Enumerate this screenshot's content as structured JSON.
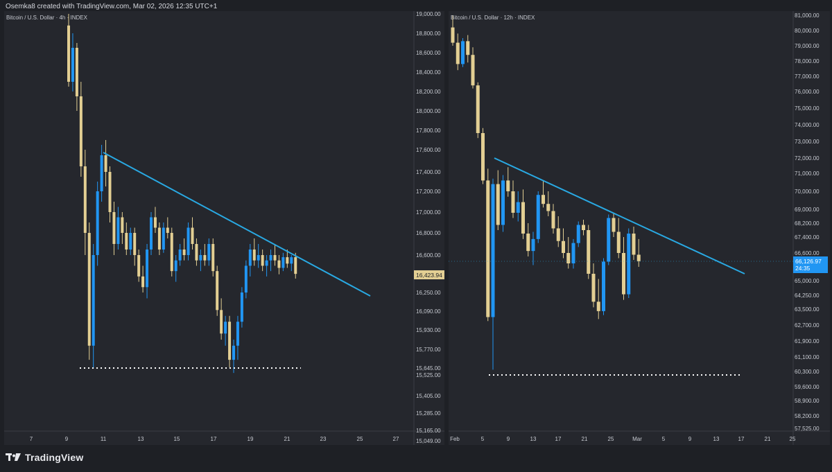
{
  "header": {
    "text": "Osemka8 created with TradingView.com, Mar 02, 2026 12:35 UTC+1"
  },
  "footer": {
    "brand": "TradingView"
  },
  "colors": {
    "up": "#2196f3",
    "down": "#e3cf93",
    "trendline": "#29a9e3",
    "support": "#ffffff",
    "pane_bg": "#25272d",
    "axis_text": "#c7cad1"
  },
  "chart_data": [
    {
      "type": "candlestick",
      "title": "Bitcoin / U.S. Dollar · 4h · INDEX",
      "y_ticks": [
        "19,000.00",
        "18,800.00",
        "18,600.00",
        "18,400.00",
        "18,200.00",
        "18,000.00",
        "17,800.00",
        "17,600.00",
        "17,400.00",
        "17,200.00",
        "17,000.00",
        "16,800.00",
        "16,600.00",
        "16,250.00",
        "16,090.00",
        "15,930.00",
        "15,770.00",
        "15,645.00",
        "15,525.00",
        "15,405.00",
        "15,285.00",
        "15,165.00",
        "15,049.00"
      ],
      "x_ticks": [
        "7",
        "9",
        "11",
        "13",
        "15",
        "17",
        "19",
        "21",
        "23",
        "25",
        "27"
      ],
      "last_price": "16,423.94",
      "candles": [
        [
          18880,
          19000,
          18250,
          18300
        ],
        [
          18300,
          18800,
          18200,
          18650
        ],
        [
          18650,
          18700,
          18000,
          18150
        ],
        [
          18150,
          18300,
          17350,
          17450
        ],
        [
          17450,
          17600,
          16600,
          16800
        ],
        [
          16800,
          16900,
          15700,
          15800
        ],
        [
          15800,
          16700,
          15640,
          16600
        ],
        [
          16600,
          17300,
          16500,
          17200
        ],
        [
          17200,
          17650,
          17100,
          17550
        ],
        [
          17550,
          17700,
          17250,
          17400
        ],
        [
          17400,
          17450,
          16900,
          17000
        ],
        [
          17000,
          17100,
          16600,
          16700
        ],
        [
          16700,
          17050,
          16650,
          16950
        ],
        [
          16950,
          17000,
          16700,
          16800
        ],
        [
          16800,
          16900,
          16600,
          16650
        ],
        [
          16650,
          16850,
          16600,
          16800
        ],
        [
          16800,
          16850,
          16500,
          16600
        ],
        [
          16600,
          16650,
          16350,
          16400
        ],
        [
          16400,
          16500,
          16250,
          16300
        ],
        [
          16300,
          16700,
          16200,
          16650
        ],
        [
          16650,
          17000,
          16600,
          16950
        ],
        [
          16950,
          17050,
          16800,
          16850
        ],
        [
          16850,
          16900,
          16600,
          16650
        ],
        [
          16650,
          16900,
          16620,
          16850
        ],
        [
          16850,
          16950,
          16750,
          16800
        ],
        [
          16800,
          16850,
          16400,
          16450
        ],
        [
          16450,
          16600,
          16350,
          16550
        ],
        [
          16550,
          16700,
          16500,
          16650
        ],
        [
          16650,
          16750,
          16550,
          16600
        ],
        [
          16600,
          16900,
          16550,
          16850
        ],
        [
          16850,
          16950,
          16650,
          16700
        ],
        [
          16700,
          16750,
          16500,
          16550
        ],
        [
          16550,
          16650,
          16450,
          16600
        ],
        [
          16600,
          16700,
          16500,
          16550
        ],
        [
          16550,
          16750,
          16500,
          16700
        ],
        [
          16700,
          16750,
          16400,
          16450
        ],
        [
          16450,
          16500,
          16050,
          16100
        ],
        [
          16100,
          16200,
          15850,
          15900
        ],
        [
          15900,
          16050,
          15800,
          16000
        ],
        [
          16000,
          16050,
          15650,
          15700
        ],
        [
          15700,
          15850,
          15560,
          15800
        ],
        [
          15800,
          16050,
          15700,
          16000
        ],
        [
          16000,
          16300,
          15950,
          16250
        ],
        [
          16250,
          16550,
          16200,
          16500
        ],
        [
          16500,
          16700,
          16400,
          16650
        ],
        [
          16650,
          16750,
          16500,
          16550
        ],
        [
          16550,
          16700,
          16480,
          16600
        ],
        [
          16600,
          16650,
          16450,
          16500
        ],
        [
          16500,
          16600,
          16400,
          16550
        ],
        [
          16550,
          16650,
          16450,
          16600
        ],
        [
          16600,
          16700,
          16500,
          16550
        ],
        [
          16550,
          16600,
          16420,
          16480
        ],
        [
          16480,
          16620,
          16450,
          16580
        ],
        [
          16580,
          16650,
          16480,
          16520
        ],
        [
          16520,
          16600,
          16450,
          16580
        ],
        [
          16580,
          16620,
          16380,
          16424
        ]
      ]
    },
    {
      "type": "candlestick",
      "title": "Bitcoin / U.S. Dollar · 12h · INDEX",
      "y_ticks": [
        "81,000.00",
        "80,000.00",
        "79,000.00",
        "78,000.00",
        "77,000.00",
        "76,000.00",
        "75,000.00",
        "74,000.00",
        "73,000.00",
        "72,000.00",
        "71,000.00",
        "70,000.00",
        "69,000.00",
        "68,200.00",
        "67,400.00",
        "66,600.00",
        "65,000.00",
        "64,250.00",
        "63,500.00",
        "62,700.00",
        "61,900.00",
        "61,100.00",
        "60,300.00",
        "59,600.00",
        "58,900.00",
        "58,200.00",
        "57,525.00"
      ],
      "x_ticks": [
        "Feb",
        "5",
        "9",
        "13",
        "17",
        "21",
        "25",
        "Mar",
        "5",
        "9",
        "13",
        "17",
        "21",
        "25"
      ],
      "last_price": "66,126.97",
      "countdown": "24:35",
      "candles": [
        [
          80200,
          81000,
          79000,
          79200
        ],
        [
          79200,
          79800,
          77400,
          77800
        ],
        [
          77800,
          79500,
          77600,
          79300
        ],
        [
          79300,
          79700,
          77900,
          78400
        ],
        [
          78400,
          78900,
          76200,
          76400
        ],
        [
          76400,
          76600,
          73200,
          73500
        ],
        [
          73500,
          73800,
          70400,
          70600
        ],
        [
          70600,
          71300,
          62900,
          63100
        ],
        [
          63100,
          70700,
          60400,
          70400
        ],
        [
          70400,
          71200,
          67800,
          68100
        ],
        [
          68100,
          70900,
          67700,
          70600
        ],
        [
          70600,
          71400,
          69700,
          70000
        ],
        [
          70000,
          70600,
          68500,
          68800
        ],
        [
          68800,
          70000,
          68300,
          69400
        ],
        [
          69400,
          70100,
          67300,
          67600
        ],
        [
          67600,
          68200,
          66400,
          66700
        ],
        [
          66700,
          67700,
          65900,
          67300
        ],
        [
          67300,
          70000,
          67100,
          69800
        ],
        [
          69800,
          70600,
          69100,
          69300
        ],
        [
          69300,
          70000,
          68600,
          68900
        ],
        [
          68900,
          69300,
          67600,
          67900
        ],
        [
          67900,
          68600,
          66900,
          67200
        ],
        [
          67200,
          67900,
          66300,
          66600
        ],
        [
          66600,
          67400,
          65700,
          66000
        ],
        [
          66000,
          67300,
          65700,
          67100
        ],
        [
          67100,
          68300,
          66900,
          68100
        ],
        [
          68100,
          68400,
          67500,
          67800
        ],
        [
          67800,
          68100,
          65100,
          65400
        ],
        [
          65400,
          66000,
          63600,
          63900
        ],
        [
          63900,
          65100,
          63000,
          63400
        ],
        [
          63400,
          66300,
          63200,
          66100
        ],
        [
          66100,
          68700,
          65900,
          68500
        ],
        [
          68500,
          68800,
          67400,
          67700
        ],
        [
          67700,
          68500,
          66300,
          66600
        ],
        [
          66600,
          67400,
          64000,
          64300
        ],
        [
          64300,
          67900,
          64100,
          67600
        ],
        [
          67600,
          68000,
          66200,
          66500
        ],
        [
          66500,
          67300,
          65800,
          66127
        ]
      ]
    }
  ]
}
